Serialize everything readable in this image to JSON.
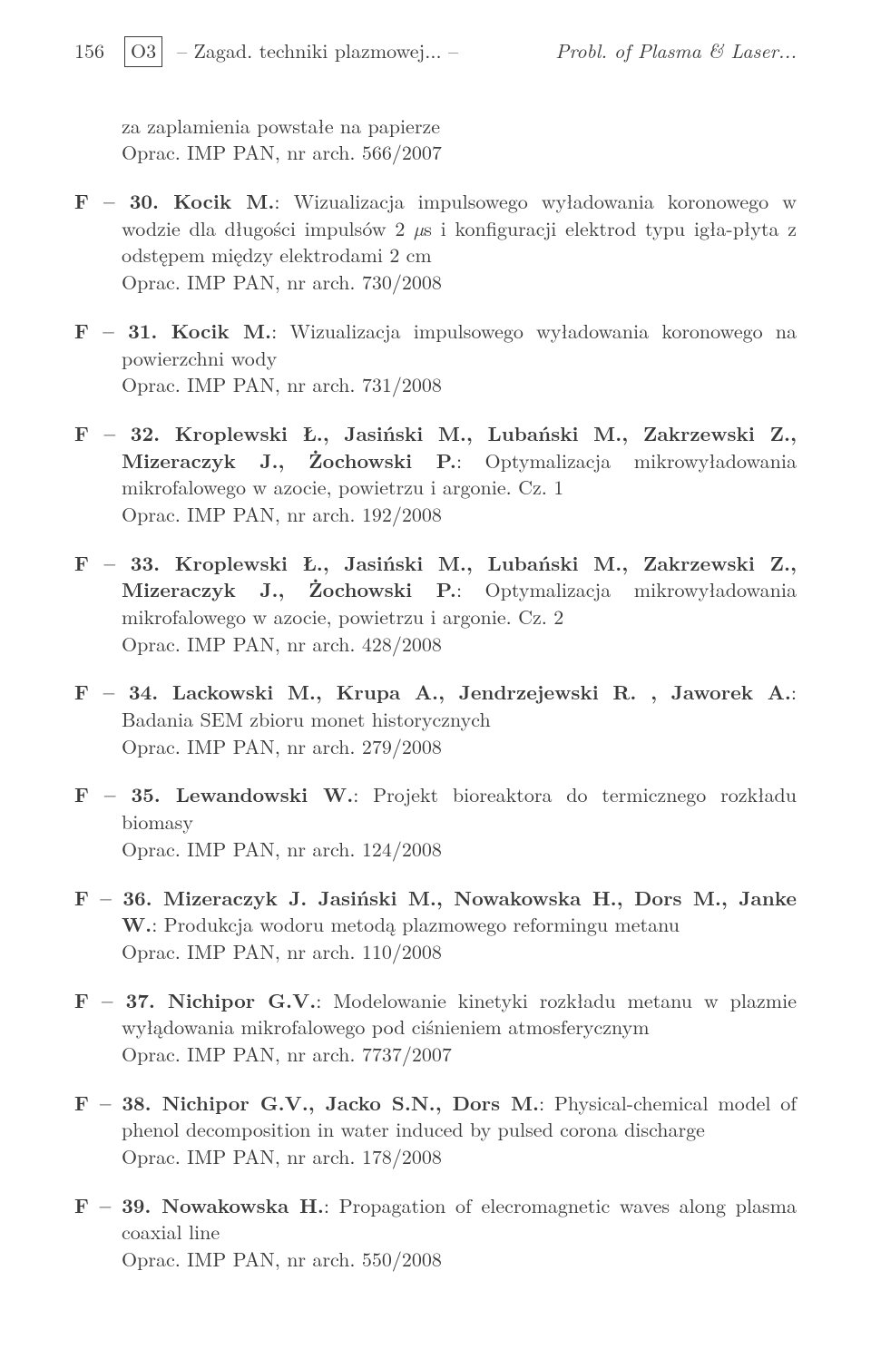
{
  "page": {
    "number": "156",
    "code": "O3",
    "left_tail": "– Zagad. techniki plazmowej...  –",
    "right": "Probl. of Plasma & Laser..."
  },
  "cont": {
    "l1": "za zaplamienia powstałe na papierze",
    "l2": "Oprac. IMP PAN, nr arch. 566/2007"
  },
  "e30": {
    "lead": "F – 30. Kocik M.",
    "body": ": Wizualizacja impulsowego wyładowania koronowego w wodzie dla długości impulsów 2 ",
    "body2": "s i konfiguracji elektrod typu igła-płyta z odstępem między elektrodami 2 cm",
    "oprac": "Oprac. IMP PAN, nr arch. 730/2008"
  },
  "e31": {
    "lead": "F – 31. Kocik M.",
    "body": ": Wizualizacja impulsowego wyładowania koronowego na powierzchni wody",
    "oprac": "Oprac. IMP PAN, nr arch. 731/2008"
  },
  "e32": {
    "lead": "F – 32. Kroplewski Ł., Jasiński M., Lubański M., Zakrzewski Z., Mizeraczyk J., Żochowski P.",
    "body": ": Optymalizacja mikrowyładowania mikrofalowego w azocie, powietrzu i argonie. Cz. 1",
    "oprac": "Oprac. IMP PAN, nr arch. 192/2008"
  },
  "e33": {
    "lead": "F – 33. Kroplewski Ł., Jasiński M., Lubański M., Zakrzewski Z., Mizeraczyk J., Żochowski P.",
    "body": ": Optymalizacja mikrowyładowania mikrofalowego w azocie, powietrzu i argonie. Cz. 2",
    "oprac": "Oprac. IMP PAN, nr arch. 428/2008"
  },
  "e34": {
    "lead": "F – 34. Lackowski M., Krupa A., Jendrzejewski R. , Jaworek A.",
    "body": ": Badania SEM zbioru monet historycznych",
    "oprac": "Oprac. IMP PAN, nr arch. 279/2008"
  },
  "e35": {
    "lead": "F – 35. Lewandowski W.",
    "body": ": Projekt bioreaktora do termicznego rozkładu biomasy",
    "oprac": "Oprac. IMP PAN, nr arch. 124/2008"
  },
  "e36": {
    "lead": "F – 36. Mizeraczyk J. Jasiński M., Nowakowska H., Dors M., Janke W.",
    "body": ": Produkcja wodoru metodą plazmowego reformingu metanu",
    "oprac": "Oprac. IMP PAN, nr arch. 110/2008"
  },
  "e37": {
    "lead": "F – 37. Nichipor G.V.",
    "body": ": Modelowanie kinetyki rozkładu metanu w plazmie wyłądowania mikrofalowego pod ciśnieniem atmosferycznym",
    "oprac": "Oprac. IMP PAN, nr arch. 7737/2007"
  },
  "e38": {
    "lead": "F – 38. Nichipor G.V., Jacko S.N., Dors M.",
    "body": ": Physical-chemical model of phenol decomposition in water induced by pulsed corona discharge",
    "oprac": "Oprac. IMP PAN, nr arch. 178/2008"
  },
  "e39": {
    "lead": "F – 39. Nowakowska H.",
    "body": ": Propagation of elecromagnetic waves along plasma coaxial line",
    "oprac": "Oprac. IMP PAN, nr arch. 550/2008"
  }
}
